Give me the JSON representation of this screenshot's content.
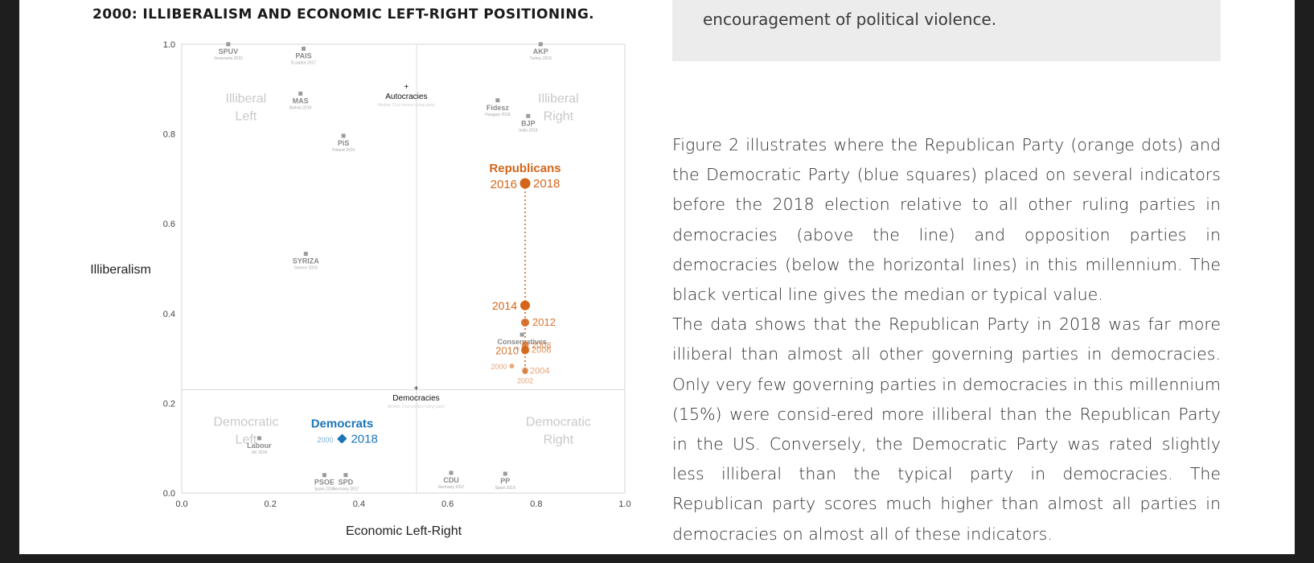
{
  "figure_title": "2000: ILLIBERALISM AND ECONOMIC LEFT-RIGHT POSITIONING.",
  "quote_tail": "encouragement of political violence.",
  "body": {
    "p1": "Figure 2 illustrates where the Republican Party (orange dots) and the Democratic Party (blue squares) placed on several indicators before the 2018 election relative to all other ruling parties in democracies (above the line) and opposition parties in democracies (below the horizontal lines) in this millennium. The black vertical line gives the median or typical value.",
    "p2": "The data shows that the Republican Party in 2018 was far more illiberal than almost all other governing parties in democracies. Only very few governing parties in democracies in this millennium (15%) were consid-ered more illiberal than the Republican Party in the US. Conversely, the Democratic Party was rated slightly less illiberal than the typical party in democracies. The Republican party scores much higher than almost all parties in democracies on almost all of these indicators."
  },
  "chart_data": {
    "type": "scatter",
    "xlabel": "Economic Left-Right",
    "ylabel": "Illiberalism",
    "xlim": [
      0,
      1
    ],
    "ylim": [
      0,
      1
    ],
    "xticks": [
      "0.0",
      "0.2",
      "0.4",
      "0.6",
      "0.8",
      "1.0"
    ],
    "yticks": [
      "0.0",
      "0.2",
      "0.4",
      "0.6",
      "0.8",
      "1.0"
    ],
    "median_x": 0.53,
    "median_y": 0.23,
    "quadrants": [
      {
        "label": [
          "Illiberal",
          "Left"
        ],
        "x": 0.145,
        "y": 0.87
      },
      {
        "label": [
          "Illiberal",
          "Right"
        ],
        "x": 0.85,
        "y": 0.87
      },
      {
        "label": [
          "Democratic",
          "Left"
        ],
        "x": 0.145,
        "y": 0.15
      },
      {
        "label": [
          "Democratic",
          "Right"
        ],
        "x": 0.85,
        "y": 0.15
      }
    ],
    "reference_points": [
      {
        "name": "Autocracies",
        "note": "Median 21st century ruling party",
        "x": 0.507,
        "y": 0.905
      },
      {
        "name": "Democracies",
        "note": "Median 21st century ruling party",
        "x": 0.529,
        "y": 0.233
      }
    ],
    "parties": [
      {
        "name": "SPUV",
        "note": "Venezuela 2015",
        "x": 0.105,
        "y": 1.0
      },
      {
        "name": "PAIS",
        "note": "Ecuador 2017",
        "x": 0.275,
        "y": 0.99
      },
      {
        "name": "AKP",
        "note": "Turkey 2015",
        "x": 0.81,
        "y": 1.0
      },
      {
        "name": "MAS",
        "note": "Bolivia 2019",
        "x": 0.268,
        "y": 0.89
      },
      {
        "name": "Fidesz",
        "note": "Hungary 2018",
        "x": 0.713,
        "y": 0.875
      },
      {
        "name": "BJP",
        "note": "India 2019",
        "x": 0.782,
        "y": 0.84
      },
      {
        "name": "PiS",
        "note": "Poland 2019",
        "x": 0.365,
        "y": 0.796
      },
      {
        "name": "SYRIZA",
        "note": "Greece 2019",
        "x": 0.28,
        "y": 0.533
      },
      {
        "name": "Conservatives",
        "note": "UK 2019",
        "x": 0.768,
        "y": 0.353
      },
      {
        "name": "Labour",
        "note": "UK 2019",
        "x": 0.175,
        "y": 0.122
      },
      {
        "name": "SPD",
        "note": "Germany 2017",
        "x": 0.37,
        "y": 0.04
      },
      {
        "name": "PSOE",
        "note": "Spain 2019",
        "x": 0.322,
        "y": 0.04
      },
      {
        "name": "CDU",
        "note": "Germany 2017",
        "x": 0.608,
        "y": 0.045
      },
      {
        "name": "PP",
        "note": "Spain 2019",
        "x": 0.73,
        "y": 0.043
      }
    ],
    "series": [
      {
        "name": "Republicans",
        "color": "#d4651a",
        "points": [
          {
            "label": "2000",
            "x": 0.745,
            "y": 0.283
          },
          {
            "label": "2002",
            "x": 0.775,
            "y": 0.27
          },
          {
            "label": "2004",
            "x": 0.775,
            "y": 0.273
          },
          {
            "label": "2006",
            "x": 0.775,
            "y": 0.32
          },
          {
            "label": "2008",
            "x": 0.775,
            "y": 0.33
          },
          {
            "label": "2010",
            "x": 0.775,
            "y": 0.318
          },
          {
            "label": "2012",
            "x": 0.775,
            "y": 0.38
          },
          {
            "label": "2014",
            "x": 0.775,
            "y": 0.418
          },
          {
            "label": "2016",
            "x": 0.775,
            "y": 0.69
          },
          {
            "label": "2018",
            "x": 0.775,
            "y": 0.69
          }
        ]
      },
      {
        "name": "Democrats",
        "color": "#1b75b8",
        "points": [
          {
            "label": "2000",
            "x": 0.36,
            "y": 0.12
          },
          {
            "label": "2018",
            "x": 0.362,
            "y": 0.123
          }
        ]
      }
    ]
  }
}
